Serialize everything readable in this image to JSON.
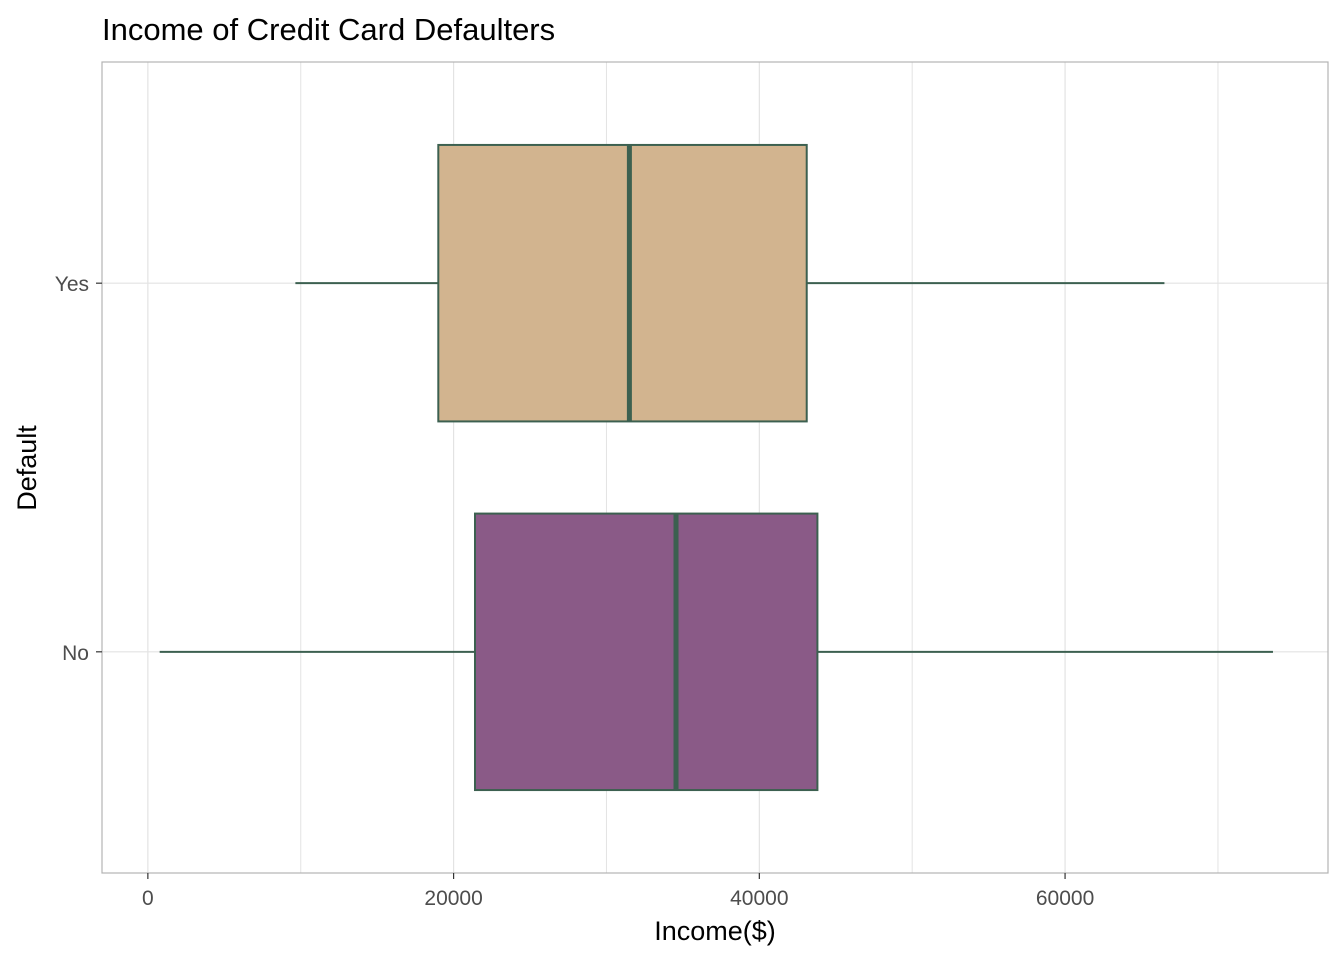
{
  "chart_data": {
    "type": "boxplot",
    "title": "Income of Credit Card Defaulters",
    "xlabel": "Income($)",
    "ylabel": "Default",
    "orientation": "horizontal",
    "xlim": [
      -3000,
      77200
    ],
    "x_ticks": [
      0,
      20000,
      40000,
      60000
    ],
    "x_tick_labels": [
      "0",
      "20000",
      "40000",
      "60000"
    ],
    "categories": [
      "No",
      "Yes"
    ],
    "boxes": [
      {
        "category": "No",
        "whisker_low": 772,
        "q1": 21400,
        "median": 34550,
        "q3": 43800,
        "whisker_high": 73600,
        "fill": "#8a5a87"
      },
      {
        "category": "Yes",
        "whisker_low": 9650,
        "q1": 19000,
        "median": 31500,
        "q3": 43100,
        "whisker_high": 66500,
        "fill": "#d2b48f"
      }
    ],
    "grid": true,
    "legend": "none",
    "colors": {
      "outline": "#3c6050",
      "grid": "#e3e3e3",
      "panel_border": "#b3b3b3",
      "tick_text": "#4d4d4d"
    }
  }
}
